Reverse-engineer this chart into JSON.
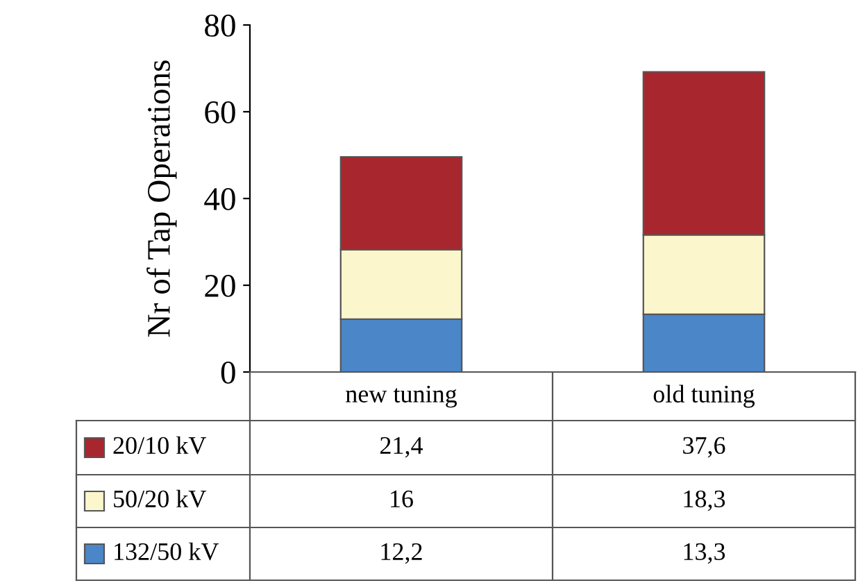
{
  "chart_data": {
    "type": "bar",
    "stacked": true,
    "ylabel": "Nr of Tap Operations",
    "categories": [
      "new tuning",
      "old tuning"
    ],
    "series": [
      {
        "name": "132/50 kV",
        "color": "#4a86c8",
        "values": [
          12.2,
          13.3
        ],
        "value_labels": [
          "12,2",
          "13,3"
        ]
      },
      {
        "name": "50/20 kV",
        "color": "#fbf6cc",
        "values": [
          16,
          18.3
        ],
        "value_labels": [
          "16",
          "18,3"
        ]
      },
      {
        "name": "20/10 kV",
        "color": "#a8272f",
        "values": [
          21.4,
          37.6
        ],
        "value_labels": [
          "21,4",
          "37,6"
        ]
      }
    ],
    "ylim": [
      0,
      80
    ],
    "yticks": [
      0,
      20,
      40,
      60,
      80
    ],
    "grid": false,
    "legend": "bottom"
  }
}
